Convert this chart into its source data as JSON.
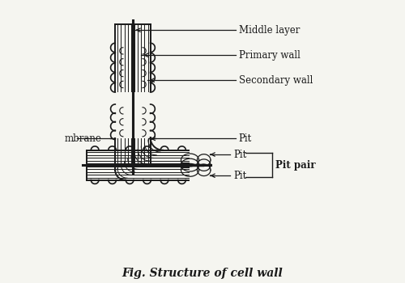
{
  "title": "Fig. Structure of cell wall",
  "title_fontsize": 10,
  "bg_color": "#f5f5f0",
  "line_color": "#1a1a1a",
  "labels": {
    "middle_layer": "Middle layer",
    "primary_wall": "Primary wall",
    "secondary_wall": "Secondary wall",
    "pit_top": "Pit",
    "pit_right_top": "Pit",
    "pit_right_bot": "Pit",
    "pit_pair": "Pit pair",
    "membrane": "mbrane"
  },
  "label_fontsize": 8.5,
  "fig_width": 5.0,
  "fig_height": 3.5,
  "dpi": 100
}
